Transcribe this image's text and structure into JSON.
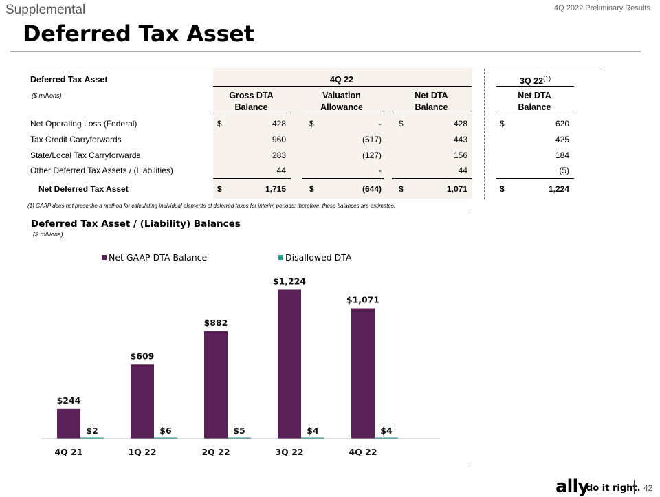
{
  "header": {
    "section": "Supplemental",
    "title": "Deferred Tax Asset",
    "report": "4Q 2022 Preliminary Results"
  },
  "table": {
    "title": "Deferred Tax Asset",
    "units": "($ millions)",
    "period_current": "4Q 22",
    "period_prior": "3Q 22",
    "period_prior_note": "(1)",
    "cols": {
      "gross1": "Gross DTA",
      "gross2": "Balance",
      "val1": "Valuation",
      "val2": "Allowance",
      "net1": "Net DTA",
      "net2": "Balance",
      "prior1": "Net DTA",
      "prior2": "Balance"
    },
    "currency": "$",
    "rows": [
      {
        "label": "Net Operating Loss (Federal)",
        "gross": "428",
        "val": "-",
        "net": "428",
        "prior": "620"
      },
      {
        "label": "Tax Credit Carryforwards",
        "gross": "960",
        "val": "(517)",
        "net": "443",
        "prior": "425"
      },
      {
        "label": "State/Local Tax Carryforwards",
        "gross": "283",
        "val": "(127)",
        "net": "156",
        "prior": "184"
      },
      {
        "label": "Other Deferred Tax Assets / (Liabilities)",
        "gross": "44",
        "val": "-",
        "net": "44",
        "prior": "(5)"
      }
    ],
    "total": {
      "label": "Net Deferred Tax Asset",
      "gross": "1,715",
      "val": "(644)",
      "net": "1,071",
      "prior": "1,224"
    },
    "footnote": "(1)   GAAP does not prescribe a method for calculating individual elements of deferred taxes for interim periods; therefore, these balances are estimates."
  },
  "chart_data": {
    "type": "bar",
    "title": "Deferred Tax Asset / (Liability) Balances",
    "subtitle": "($ millions)",
    "categories": [
      "4Q 21",
      "1Q 22",
      "2Q 22",
      "3Q 22",
      "4Q 22"
    ],
    "series": [
      {
        "name": "Net GAAP DTA Balance",
        "values": [
          244,
          609,
          882,
          1224,
          1071
        ],
        "labels": [
          "$244",
          "$609",
          "$882",
          "$1,224",
          "$1,071"
        ],
        "color": "#5a2058"
      },
      {
        "name": "Disallowed DTA",
        "values": [
          2,
          6,
          5,
          4,
          4
        ],
        "labels": [
          "$2",
          "$6",
          "$5",
          "$4",
          "$4"
        ],
        "color": "#1f9a8f"
      }
    ],
    "ylim": [
      0,
      1300
    ],
    "legend": "top"
  },
  "footer": {
    "brand": "ally",
    "tagline": "do it right.",
    "page": "42"
  }
}
